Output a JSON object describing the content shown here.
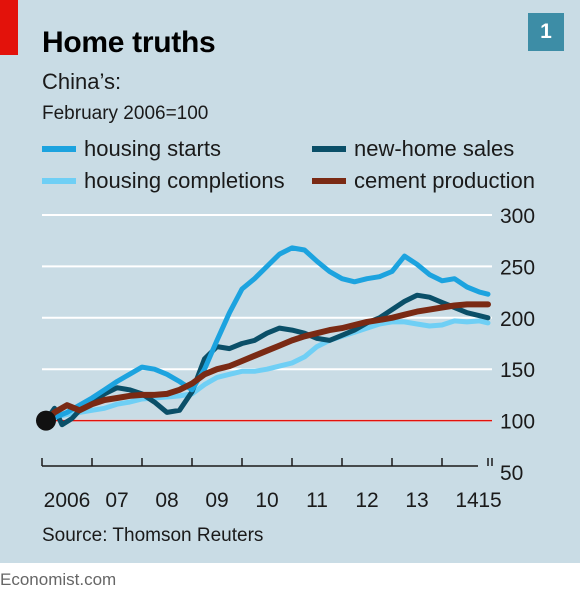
{
  "title": "Home truths",
  "badge": "1",
  "subtitle": "China’s:",
  "subtitle2": "February 2006=100",
  "source": "Source: Thomson Reuters",
  "footer": "Economist.com",
  "colors": {
    "background": "#c9dce5",
    "accent_red": "#e3120b",
    "badge": "#3d8da6",
    "gridline": "#ffffff",
    "baseline": "#e3120b"
  },
  "chart_data": {
    "type": "line",
    "title": "Home truths",
    "ylabel": "",
    "xlabel": "",
    "ylim": [
      50,
      300
    ],
    "yticks": [
      300,
      250,
      200,
      150,
      100,
      50
    ],
    "xlim": [
      2006.0,
      2015.0
    ],
    "xtick_labels": [
      "2006",
      "07",
      "08",
      "09",
      "10",
      "11",
      "12",
      "13",
      "14",
      "15"
    ],
    "xtick_values": [
      2006,
      2007,
      2008,
      2009,
      2010,
      2011,
      2012,
      2013,
      2014,
      2015
    ],
    "baseline": 100,
    "start_marker": {
      "x": 2006.08,
      "y": 100
    },
    "legend_position": "top",
    "grid": true,
    "series": [
      {
        "name": "housing starts",
        "color": "#1ca3df",
        "x": [
          2006.08,
          2006.25,
          2006.5,
          2006.75,
          2007.0,
          2007.25,
          2007.5,
          2007.75,
          2008.0,
          2008.25,
          2008.5,
          2008.75,
          2009.0,
          2009.25,
          2009.5,
          2009.75,
          2010.0,
          2010.25,
          2010.5,
          2010.75,
          2011.0,
          2011.25,
          2011.5,
          2011.75,
          2012.0,
          2012.25,
          2012.5,
          2012.75,
          2013.0,
          2013.25,
          2013.5,
          2013.75,
          2014.0,
          2014.25,
          2014.5,
          2014.75,
          2014.92
        ],
        "values": [
          100,
          103,
          108,
          115,
          122,
          130,
          138,
          145,
          152,
          150,
          145,
          138,
          130,
          150,
          178,
          205,
          228,
          238,
          250,
          262,
          268,
          266,
          255,
          245,
          238,
          235,
          238,
          240,
          245,
          260,
          252,
          242,
          236,
          238,
          230,
          225,
          223
        ]
      },
      {
        "name": "new-home sales",
        "color": "#0a4f68",
        "x": [
          2006.08,
          2006.25,
          2006.4,
          2006.6,
          2006.75,
          2007.0,
          2007.25,
          2007.5,
          2007.75,
          2008.0,
          2008.25,
          2008.5,
          2008.75,
          2009.0,
          2009.25,
          2009.5,
          2009.75,
          2010.0,
          2010.25,
          2010.5,
          2010.75,
          2011.0,
          2011.25,
          2011.5,
          2011.75,
          2012.0,
          2012.25,
          2012.5,
          2012.75,
          2013.0,
          2013.25,
          2013.5,
          2013.75,
          2014.0,
          2014.25,
          2014.5,
          2014.75,
          2014.92
        ],
        "values": [
          100,
          112,
          96,
          102,
          110,
          118,
          126,
          132,
          130,
          126,
          118,
          108,
          110,
          128,
          160,
          172,
          170,
          175,
          178,
          185,
          190,
          188,
          185,
          180,
          178,
          183,
          188,
          195,
          200,
          208,
          216,
          222,
          220,
          215,
          210,
          205,
          202,
          200
        ]
      },
      {
        "name": "housing completions",
        "color": "#6fcff5",
        "x": [
          2006.08,
          2006.25,
          2006.5,
          2006.75,
          2007.0,
          2007.25,
          2007.5,
          2007.75,
          2008.0,
          2008.25,
          2008.5,
          2008.75,
          2009.0,
          2009.25,
          2009.5,
          2009.75,
          2010.0,
          2010.25,
          2010.5,
          2010.75,
          2011.0,
          2011.25,
          2011.5,
          2011.75,
          2012.0,
          2012.25,
          2012.5,
          2012.75,
          2013.0,
          2013.25,
          2013.5,
          2013.75,
          2014.0,
          2014.25,
          2014.5,
          2014.75,
          2014.92
        ],
        "values": [
          100,
          103,
          106,
          108,
          110,
          112,
          116,
          118,
          121,
          122,
          123,
          124,
          126,
          135,
          142,
          145,
          148,
          148,
          150,
          153,
          156,
          162,
          172,
          178,
          182,
          186,
          190,
          194,
          196,
          196,
          194,
          192,
          193,
          197,
          196,
          197,
          195
        ]
      },
      {
        "name": "cement production",
        "color": "#7a2a14",
        "x": [
          2006.08,
          2006.25,
          2006.5,
          2006.75,
          2007.0,
          2007.25,
          2007.5,
          2007.75,
          2008.0,
          2008.25,
          2008.5,
          2008.75,
          2009.0,
          2009.25,
          2009.5,
          2009.75,
          2010.0,
          2010.25,
          2010.5,
          2010.75,
          2011.0,
          2011.25,
          2011.5,
          2011.75,
          2012.0,
          2012.25,
          2012.5,
          2012.75,
          2013.0,
          2013.25,
          2013.5,
          2013.75,
          2014.0,
          2014.25,
          2014.5,
          2014.75,
          2014.92
        ],
        "values": [
          100,
          108,
          115,
          110,
          116,
          120,
          122,
          124,
          125,
          125,
          126,
          130,
          136,
          145,
          150,
          153,
          158,
          163,
          168,
          173,
          178,
          182,
          185,
          188,
          190,
          193,
          196,
          198,
          200,
          203,
          206,
          208,
          210,
          212,
          213,
          213,
          213
        ]
      }
    ]
  }
}
